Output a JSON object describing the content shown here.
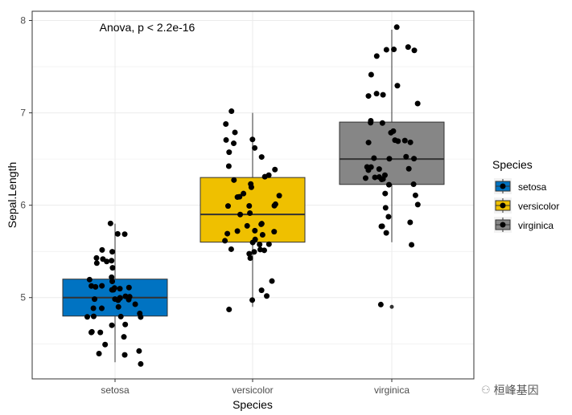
{
  "chart_data": {
    "type": "boxplot",
    "xlabel": "Species",
    "ylabel": "Sepal.Length",
    "ylim": [
      4.12,
      8.1
    ],
    "yticks": [
      5,
      6,
      7,
      8
    ],
    "categories": [
      "setosa",
      "versicolor",
      "virginica"
    ],
    "colors": [
      "#0073C2",
      "#EFC000",
      "#868686"
    ],
    "annotation": "Anova, p < 2.2e-16",
    "legend": {
      "title": "Species",
      "entries": [
        "setosa",
        "versicolor",
        "virginica"
      ],
      "placement": "right"
    },
    "grid": true,
    "boxes": [
      {
        "min": 4.3,
        "q1": 4.8,
        "median": 5.0,
        "q3": 5.2,
        "max": 5.8,
        "outliers": []
      },
      {
        "min": 4.9,
        "q1": 5.6,
        "median": 5.9,
        "q3": 6.3,
        "max": 7.0,
        "outliers": []
      },
      {
        "min": 5.6,
        "q1": 6.225,
        "median": 6.5,
        "q3": 6.9,
        "max": 7.9,
        "outliers": [
          4.9
        ]
      }
    ],
    "points": [
      [
        5.1,
        4.9,
        4.7,
        4.6,
        5.0,
        5.4,
        4.6,
        5.0,
        4.4,
        4.9,
        5.4,
        4.8,
        4.8,
        4.3,
        5.8,
        5.7,
        5.4,
        5.1,
        5.7,
        5.1,
        5.4,
        5.1,
        4.6,
        5.1,
        4.8,
        5.0,
        5.0,
        5.2,
        5.2,
        4.7,
        4.8,
        5.4,
        5.2,
        5.5,
        4.9,
        5.0,
        5.5,
        4.9,
        4.4,
        5.1,
        5.0,
        4.5,
        4.4,
        5.0,
        5.1,
        4.8,
        5.1,
        4.6,
        5.3,
        5.0
      ],
      [
        7.0,
        6.4,
        6.9,
        5.5,
        6.5,
        5.7,
        6.3,
        4.9,
        6.6,
        5.2,
        5.0,
        5.9,
        6.0,
        6.1,
        5.6,
        6.7,
        5.6,
        5.8,
        6.2,
        5.6,
        5.9,
        6.1,
        6.3,
        6.1,
        6.4,
        6.6,
        6.8,
        6.7,
        6.0,
        5.7,
        5.5,
        5.5,
        5.8,
        6.0,
        5.4,
        6.0,
        6.7,
        6.3,
        5.6,
        5.5,
        5.5,
        6.1,
        5.8,
        5.0,
        5.6,
        5.7,
        5.7,
        6.2,
        5.1,
        5.7
      ],
      [
        6.3,
        5.8,
        7.1,
        6.3,
        6.5,
        7.6,
        4.9,
        7.3,
        6.7,
        7.2,
        6.5,
        6.4,
        6.8,
        5.7,
        5.8,
        6.4,
        6.5,
        7.7,
        7.7,
        6.0,
        6.9,
        5.6,
        7.7,
        6.3,
        6.7,
        7.2,
        6.2,
        6.1,
        6.4,
        7.2,
        7.4,
        7.9,
        6.4,
        6.3,
        6.1,
        7.7,
        6.3,
        6.4,
        6.0,
        6.9,
        6.7,
        6.9,
        5.8,
        6.8,
        6.7,
        6.7,
        6.3,
        6.5,
        6.2,
        5.9
      ]
    ]
  },
  "watermark": "桓峰基因"
}
